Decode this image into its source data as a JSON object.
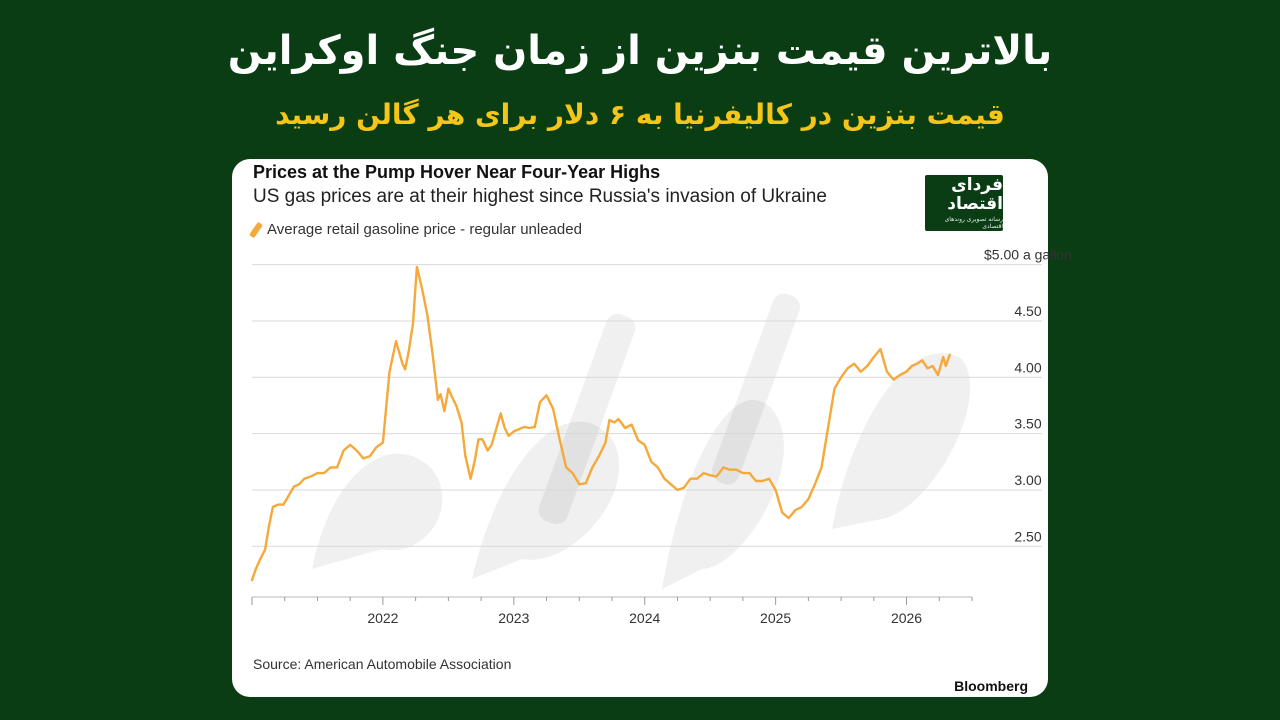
{
  "headline": "بالاترین قیمت بنزین از زمان جنگ اوکراین",
  "subheadline": "قیمت بنزین در کالیفرنیا به ۶ دلار برای هر گالن رسید",
  "logo": {
    "text": "فردای اقتصاد",
    "tagline": "رسانه تصویری روندهای اقتصادی"
  },
  "source": "Source: American Automobile Association",
  "brand": "Bloomberg",
  "colors": {
    "background": "#0a3d14",
    "line": "#f4a93a",
    "headline": "#ffffff",
    "subheadline": "#f5c518"
  },
  "chart_data": {
    "type": "line",
    "title": "Prices at the Pump Hover Near Four-Year Highs",
    "subtitle": "US gas prices are at their highest since Russia's invasion of Ukraine",
    "ylabel": "",
    "xlabel": "",
    "ylim": [
      2.05,
      5.05
    ],
    "xlim": [
      2021.0,
      2026.5
    ],
    "grid": true,
    "legend_position": "top-left",
    "x_ticks": [
      2022,
      2023,
      2024,
      2025,
      2026
    ],
    "x_tick_labels": [
      "2022",
      "2023",
      "2024",
      "2025",
      "2026"
    ],
    "y_ticks": [
      2.5,
      3.0,
      3.5,
      4.0,
      4.5,
      5.0
    ],
    "y_tick_labels": [
      "2.50",
      "3.00",
      "3.50",
      "4.00",
      "4.50",
      "$5.00 a gallon"
    ],
    "series": [
      {
        "name": "Average retail gasoline price - regular unleaded",
        "color": "#f4a93a",
        "x": [
          2021.0,
          2021.03,
          2021.06,
          2021.1,
          2021.13,
          2021.16,
          2021.2,
          2021.24,
          2021.28,
          2021.32,
          2021.36,
          2021.4,
          2021.45,
          2021.5,
          2021.55,
          2021.6,
          2021.65,
          2021.7,
          2021.75,
          2021.8,
          2021.85,
          2021.9,
          2021.95,
          2022.0,
          2022.05,
          2022.1,
          2022.13,
          2022.15,
          2022.17,
          2022.2,
          2022.23,
          2022.26,
          2022.3,
          2022.34,
          2022.38,
          2022.42,
          2022.44,
          2022.47,
          2022.5,
          2022.53,
          2022.56,
          2022.6,
          2022.63,
          2022.67,
          2022.7,
          2022.73,
          2022.76,
          2022.8,
          2022.83,
          2022.86,
          2022.9,
          2022.93,
          2022.96,
          2023.0,
          2023.04,
          2023.08,
          2023.12,
          2023.16,
          2023.2,
          2023.25,
          2023.3,
          2023.35,
          2023.4,
          2023.45,
          2023.5,
          2023.55,
          2023.6,
          2023.65,
          2023.7,
          2023.73,
          2023.77,
          2023.8,
          2023.85,
          2023.9,
          2023.95,
          2024.0,
          2024.05,
          2024.1,
          2024.15,
          2024.2,
          2024.25,
          2024.3,
          2024.35,
          2024.4,
          2024.45,
          2024.5,
          2024.55,
          2024.6,
          2024.65,
          2024.7,
          2024.75,
          2024.8,
          2024.85,
          2024.9,
          2024.95,
          2025.0,
          2025.05,
          2025.1,
          2025.15,
          2025.2,
          2025.25,
          2025.3,
          2025.35,
          2025.4,
          2025.45,
          2025.5,
          2025.55,
          2025.6,
          2025.65,
          2025.7,
          2025.75,
          2025.8,
          2025.85,
          2025.9,
          2025.95,
          2026.0,
          2026.04,
          2026.08,
          2026.12,
          2026.16,
          2026.2,
          2026.24,
          2026.28,
          2026.3,
          2026.33
        ],
        "y": [
          2.2,
          2.3,
          2.38,
          2.47,
          2.68,
          2.85,
          2.87,
          2.87,
          2.95,
          3.03,
          3.05,
          3.1,
          3.12,
          3.15,
          3.15,
          3.2,
          3.2,
          3.35,
          3.4,
          3.35,
          3.28,
          3.3,
          3.38,
          3.42,
          4.05,
          4.32,
          4.2,
          4.12,
          4.07,
          4.25,
          4.48,
          4.98,
          4.78,
          4.55,
          4.2,
          3.8,
          3.85,
          3.7,
          3.9,
          3.82,
          3.75,
          3.6,
          3.3,
          3.1,
          3.25,
          3.45,
          3.45,
          3.35,
          3.4,
          3.52,
          3.68,
          3.55,
          3.48,
          3.52,
          3.54,
          3.56,
          3.55,
          3.56,
          3.78,
          3.84,
          3.72,
          3.45,
          3.2,
          3.15,
          3.05,
          3.06,
          3.2,
          3.3,
          3.42,
          3.62,
          3.6,
          3.63,
          3.55,
          3.58,
          3.44,
          3.4,
          3.25,
          3.2,
          3.1,
          3.05,
          3.0,
          3.02,
          3.1,
          3.1,
          3.15,
          3.13,
          3.12,
          3.2,
          3.18,
          3.18,
          3.15,
          3.15,
          3.08,
          3.08,
          3.1,
          3.0,
          2.8,
          2.75,
          2.82,
          2.85,
          2.92,
          3.05,
          3.2,
          3.55,
          3.9,
          4.0,
          4.08,
          4.12,
          4.05,
          4.1,
          4.18,
          4.25,
          4.05,
          3.98,
          4.02,
          4.05,
          4.1,
          4.12,
          4.15,
          4.08,
          4.1,
          4.02,
          4.18,
          4.1,
          4.2
        ]
      }
    ]
  }
}
